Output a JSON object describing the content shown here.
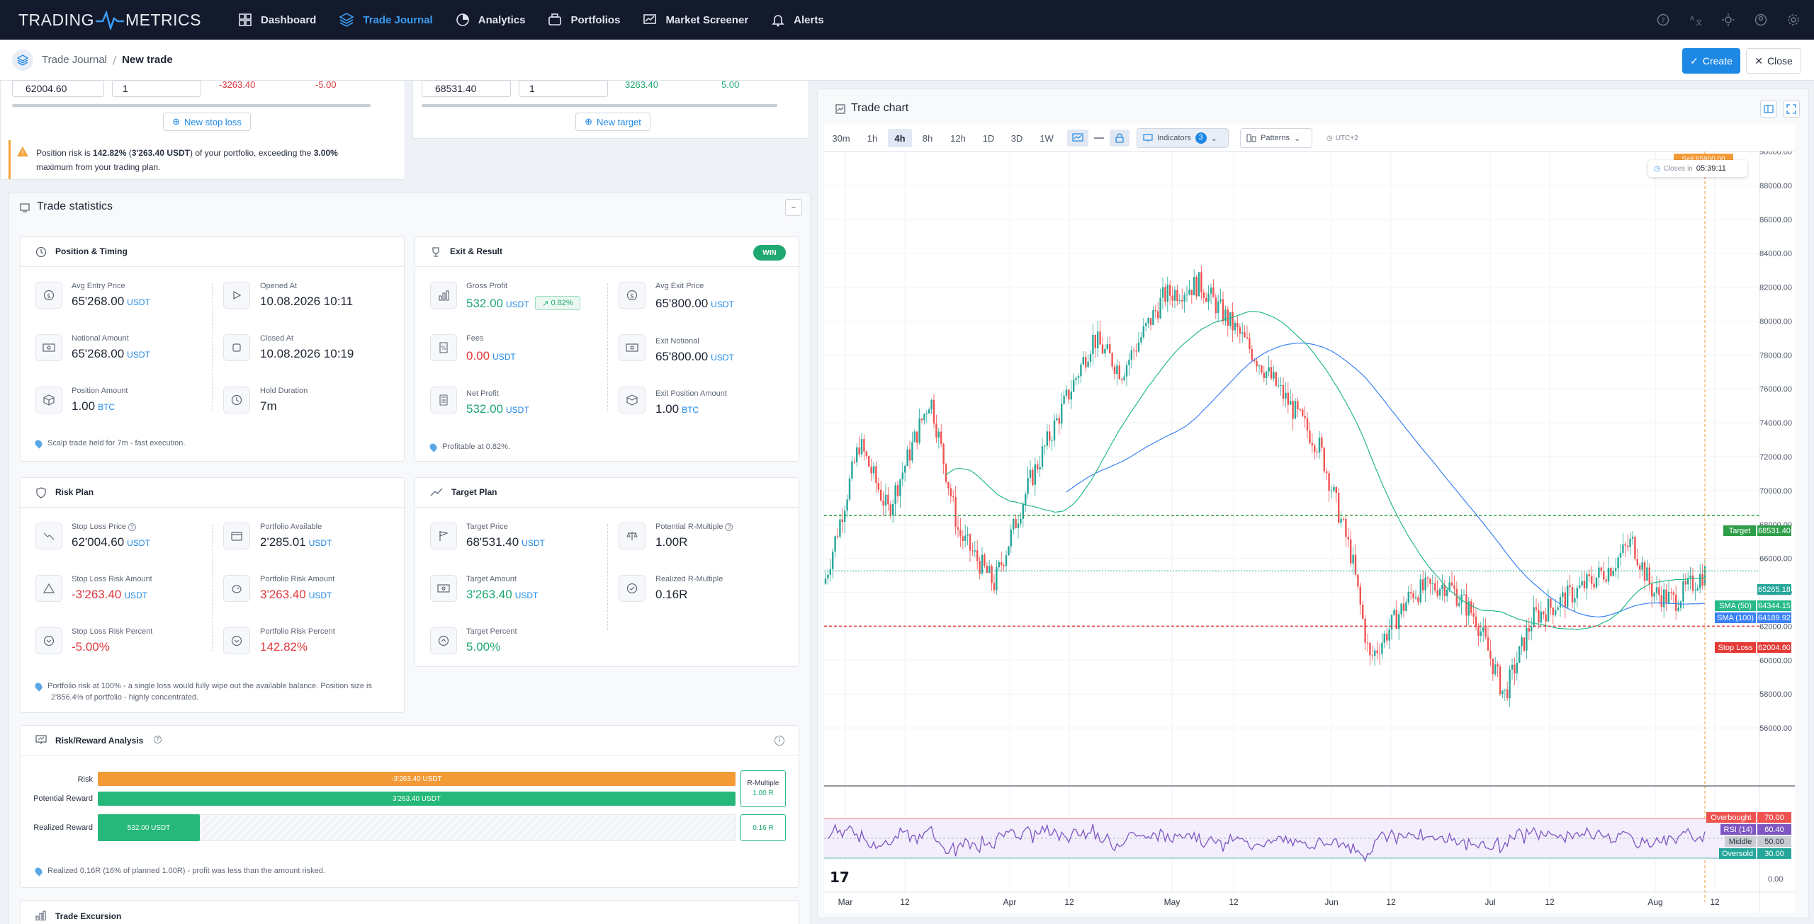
{
  "app": {
    "logo_left": "TRADING",
    "logo_right": "METRICS"
  },
  "nav": [
    {
      "label": "Dashboard",
      "icon": "dashboard-icon"
    },
    {
      "label": "Trade Journal",
      "icon": "layers-icon",
      "active": true
    },
    {
      "label": "Analytics",
      "icon": "analytics-icon"
    },
    {
      "label": "Portfolios",
      "icon": "portfolio-icon"
    },
    {
      "label": "Market Screener",
      "icon": "screener-icon"
    },
    {
      "label": "Alerts",
      "icon": "bell-icon"
    }
  ],
  "breadcrumb": {
    "parent": "Trade Journal",
    "current": "New trade"
  },
  "actions": {
    "create": "Create",
    "close": "Close"
  },
  "stoploss_row": {
    "price": "62004.60",
    "qty": "1",
    "amount": "-3263.40",
    "percent": "-5.00",
    "button": "New stop loss"
  },
  "target_row": {
    "price": "68531.40",
    "qty": "1",
    "amount": "3263.40",
    "percent": "5.00",
    "button": "New target"
  },
  "warning": {
    "pre": "Position risk is ",
    "pct": "142.82%",
    "mid1": " (",
    "amt": "3'263.40 USDT",
    "mid2": ") of your portfolio, exceeding the ",
    "max": "3.00%",
    "post": "maximum from your trading plan."
  },
  "stats": {
    "title": "Trade statistics",
    "position": {
      "title": "Position & Timing",
      "avg_entry": {
        "label": "Avg Entry Price",
        "value": "65'268.00",
        "unit": "USDT"
      },
      "notional": {
        "label": "Notional Amount",
        "value": "65'268.00",
        "unit": "USDT"
      },
      "amount": {
        "label": "Position Amount",
        "value": "1.00",
        "unit": "BTC"
      },
      "opened": {
        "label": "Opened At",
        "value": "10.08.2026 10:11"
      },
      "closed": {
        "label": "Closed At",
        "value": "10.08.2026 10:19"
      },
      "duration": {
        "label": "Hold Duration",
        "value": "7m"
      },
      "note": "Scalp trade held for 7m - fast execution."
    },
    "exit": {
      "title": "Exit & Result",
      "badge": "WIN",
      "gross": {
        "label": "Gross Profit",
        "value": "532.00",
        "unit": "USDT",
        "chip": "0.82%"
      },
      "fees": {
        "label": "Fees",
        "value": "0.00",
        "unit": "USDT"
      },
      "net": {
        "label": "Net Profit",
        "value": "532.00",
        "unit": "USDT"
      },
      "avg_exit": {
        "label": "Avg Exit Price",
        "value": "65'800.00",
        "unit": "USDT"
      },
      "exit_notional": {
        "label": "Exit Notional",
        "value": "65'800.00",
        "unit": "USDT"
      },
      "exit_amount": {
        "label": "Exit Position Amount",
        "value": "1.00",
        "unit": "BTC"
      },
      "note": "Profitable at 0.82%."
    },
    "risk": {
      "title": "Risk Plan",
      "sl_price": {
        "label": "Stop Loss Price",
        "value": "62'004.60",
        "unit": "USDT"
      },
      "sl_amount": {
        "label": "Stop Loss Risk Amount",
        "value": "-3'263.40",
        "unit": "USDT"
      },
      "sl_percent": {
        "label": "Stop Loss Risk Percent",
        "value": "-5.00%"
      },
      "pf_avail": {
        "label": "Portfolio Available",
        "value": "2'285.01",
        "unit": "USDT"
      },
      "pf_risk_amt": {
        "label": "Portfolio Risk Amount",
        "value": "3'263.40",
        "unit": "USDT"
      },
      "pf_risk_pct": {
        "label": "Portfolio Risk Percent",
        "value": "142.82%"
      },
      "note1": "Portfolio risk at 100% - a single loss would fully wipe out the available balance. Position size is",
      "note2": "2'856.4% of portfolio - highly concentrated."
    },
    "target": {
      "title": "Target Plan",
      "price": {
        "label": "Target Price",
        "value": "68'531.40",
        "unit": "USDT"
      },
      "amount": {
        "label": "Target Amount",
        "value": "3'263.40",
        "unit": "USDT"
      },
      "percent": {
        "label": "Target Percent",
        "value": "5.00%"
      },
      "pot_r": {
        "label": "Potential R-Multiple",
        "value": "1.00R"
      },
      "real_r": {
        "label": "Realized R-Multiple",
        "value": "0.16R"
      }
    },
    "rr": {
      "title": "Risk/Reward Analysis",
      "risk_label": "Risk",
      "risk_bar": "-3'263.40 USDT",
      "pot_label": "Potential Reward",
      "pot_bar": "3'263.40 USDT",
      "real_label": "Realized Reward",
      "real_bar": "532.00 USDT",
      "realized_fraction": 0.16,
      "rmult_label": "R-Multiple",
      "rmult_value": "1.00 R",
      "real_r": "0.16 R",
      "note": "Realized 0.16R (16% of planned 1.00R) - profit was less than the amount risked."
    },
    "excursion": {
      "title": "Trade Excursion"
    }
  },
  "chart": {
    "title": "Trade chart",
    "timeframes": [
      "30m",
      "1h",
      "4h",
      "8h",
      "12h",
      "1D",
      "3D",
      "1W"
    ],
    "active_tf": "4h",
    "indicators": "Indicators",
    "indicators_count": "3",
    "patterns": "Patterns",
    "timezone": "UTC+2",
    "sell_badge": "Sell 65800.00",
    "closes_in": "Closes in",
    "countdown": "05:39:11",
    "y_ticks": [
      "90000.00",
      "88000.00",
      "86000.00",
      "84000.00",
      "82000.00",
      "80000.00",
      "78000.00",
      "76000.00",
      "74000.00",
      "72000.00",
      "70000.00",
      "68000.00",
      "66000.00",
      "64000.00",
      "62000.00",
      "60000.00",
      "58000.00",
      "56000.00"
    ],
    "x_ticks": [
      "Mar",
      "12",
      "Apr",
      "12",
      "May",
      "12",
      "Jun",
      "12",
      "Jul",
      "12",
      "Aug",
      "12"
    ],
    "lines": {
      "target_label": "Target",
      "target_value": "68531.40",
      "current": "65265.18",
      "sma50_label": "SMA (50)",
      "sma50_value": "64344.15",
      "sma100_label": "SMA (100)",
      "sma100_value": "64189.92",
      "sl_label": "Stop Loss",
      "sl_value": "62004.60"
    },
    "rsi": {
      "overbought_label": "Overbought",
      "overbought": "70.00",
      "rsi_label": "RSI (14)",
      "rsi_value": "60.40",
      "middle_label": "Middle",
      "middle": "50.00",
      "oversold_label": "Oversold",
      "oversold": "30.00",
      "zero": "0.00"
    },
    "colors": {
      "up": "#26a69a",
      "down": "#ef5350",
      "sma50": "#26b98a",
      "sma100": "#3b82f6",
      "target": "#2e9e48",
      "stop": "#e53935",
      "rsi": "#7e57c2"
    }
  }
}
